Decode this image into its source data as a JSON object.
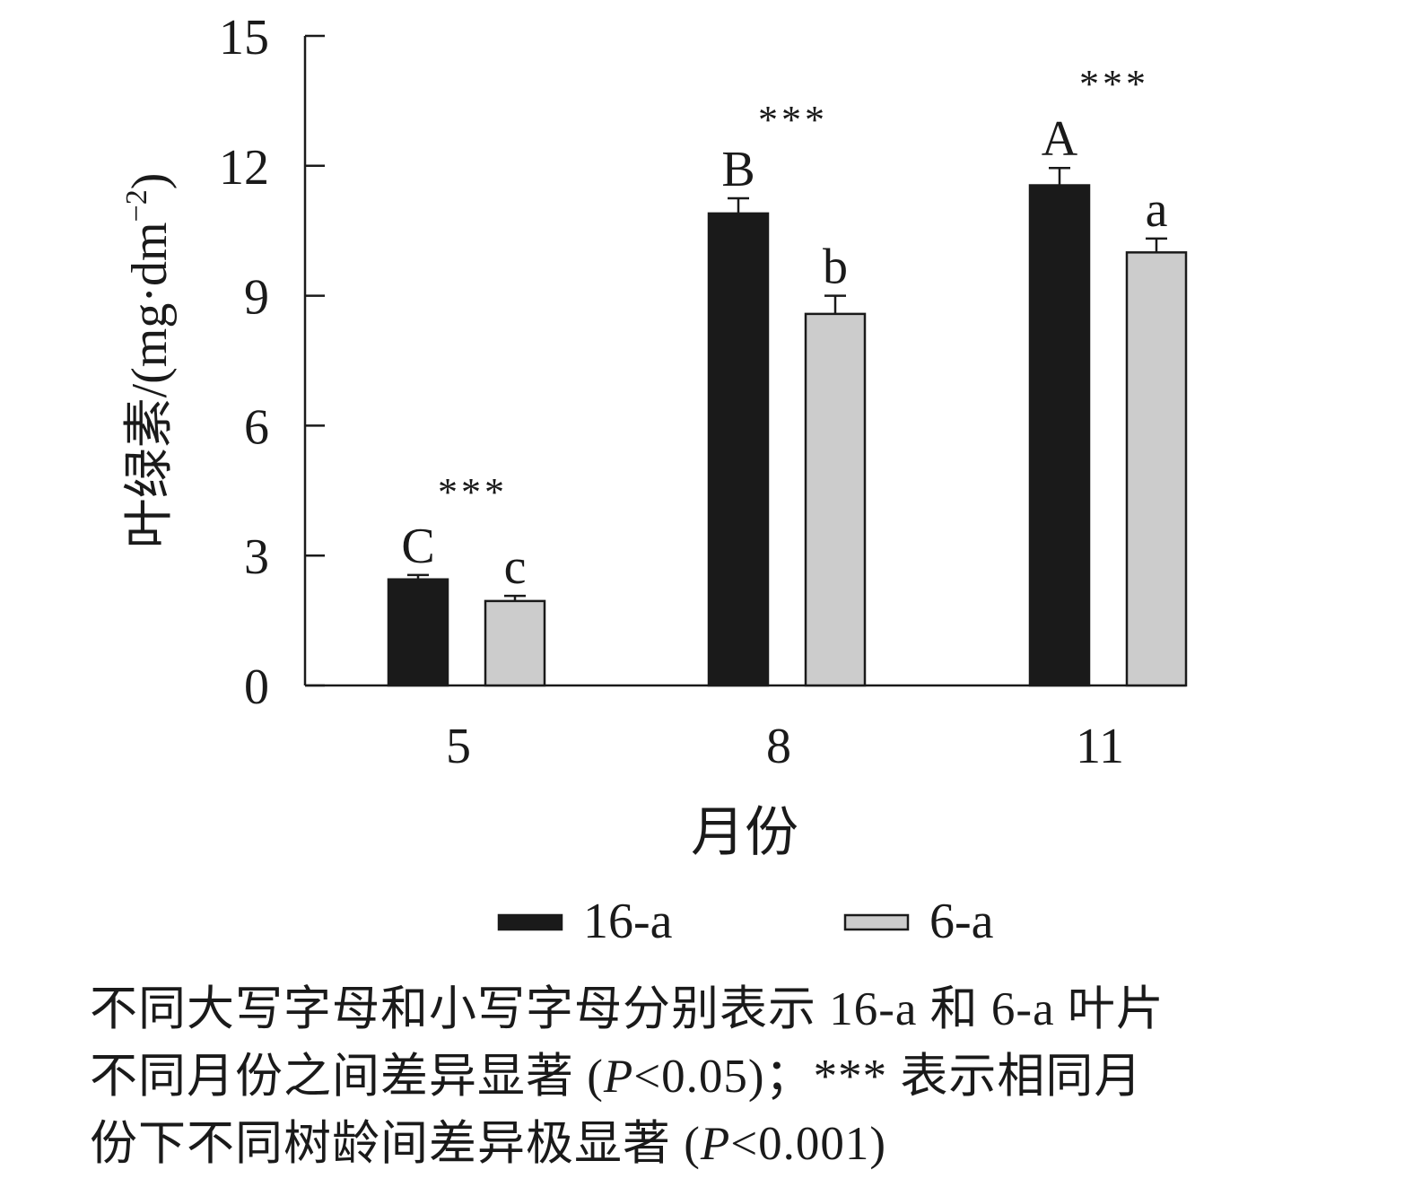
{
  "chart_data": {
    "type": "bar",
    "title": "",
    "xlabel": "月份",
    "ylabel": "叶绿素/(mg·dm",
    "ylabel_sup": "−2",
    "ylabel_close": ")",
    "ylim": [
      0,
      15
    ],
    "yticks": [
      "0",
      "3",
      "6",
      "9",
      "12",
      "15"
    ],
    "categories": [
      "5",
      "8",
      "11"
    ],
    "series": [
      {
        "name": "16-a",
        "color": "#1a1a1a",
        "values": [
          2.45,
          10.9,
          11.55
        ],
        "errors": [
          0.1,
          0.35,
          0.4
        ],
        "letters": [
          "C",
          "B",
          "A"
        ]
      },
      {
        "name": "6-a",
        "color": "#cccccc",
        "values": [
          1.95,
          8.58,
          10.0
        ],
        "errors": [
          0.12,
          0.42,
          0.32
        ],
        "letters": [
          "c",
          "b",
          "a"
        ]
      }
    ],
    "significance": [
      "***",
      "***",
      "***"
    ],
    "grid": false,
    "legend_position": "bottom"
  },
  "caption": {
    "line1": "不同大写字母和小写字母分别表示 16-a 和 6-a 叶片",
    "line2_a": "不同月份之间差异显著 (",
    "line2_p": "P",
    "line2_b": "<0.05)；*** 表示相同月",
    "line3_a": "份下不同树龄间差异极显著 (",
    "line3_p": "P",
    "line3_b": "<0.001)"
  }
}
